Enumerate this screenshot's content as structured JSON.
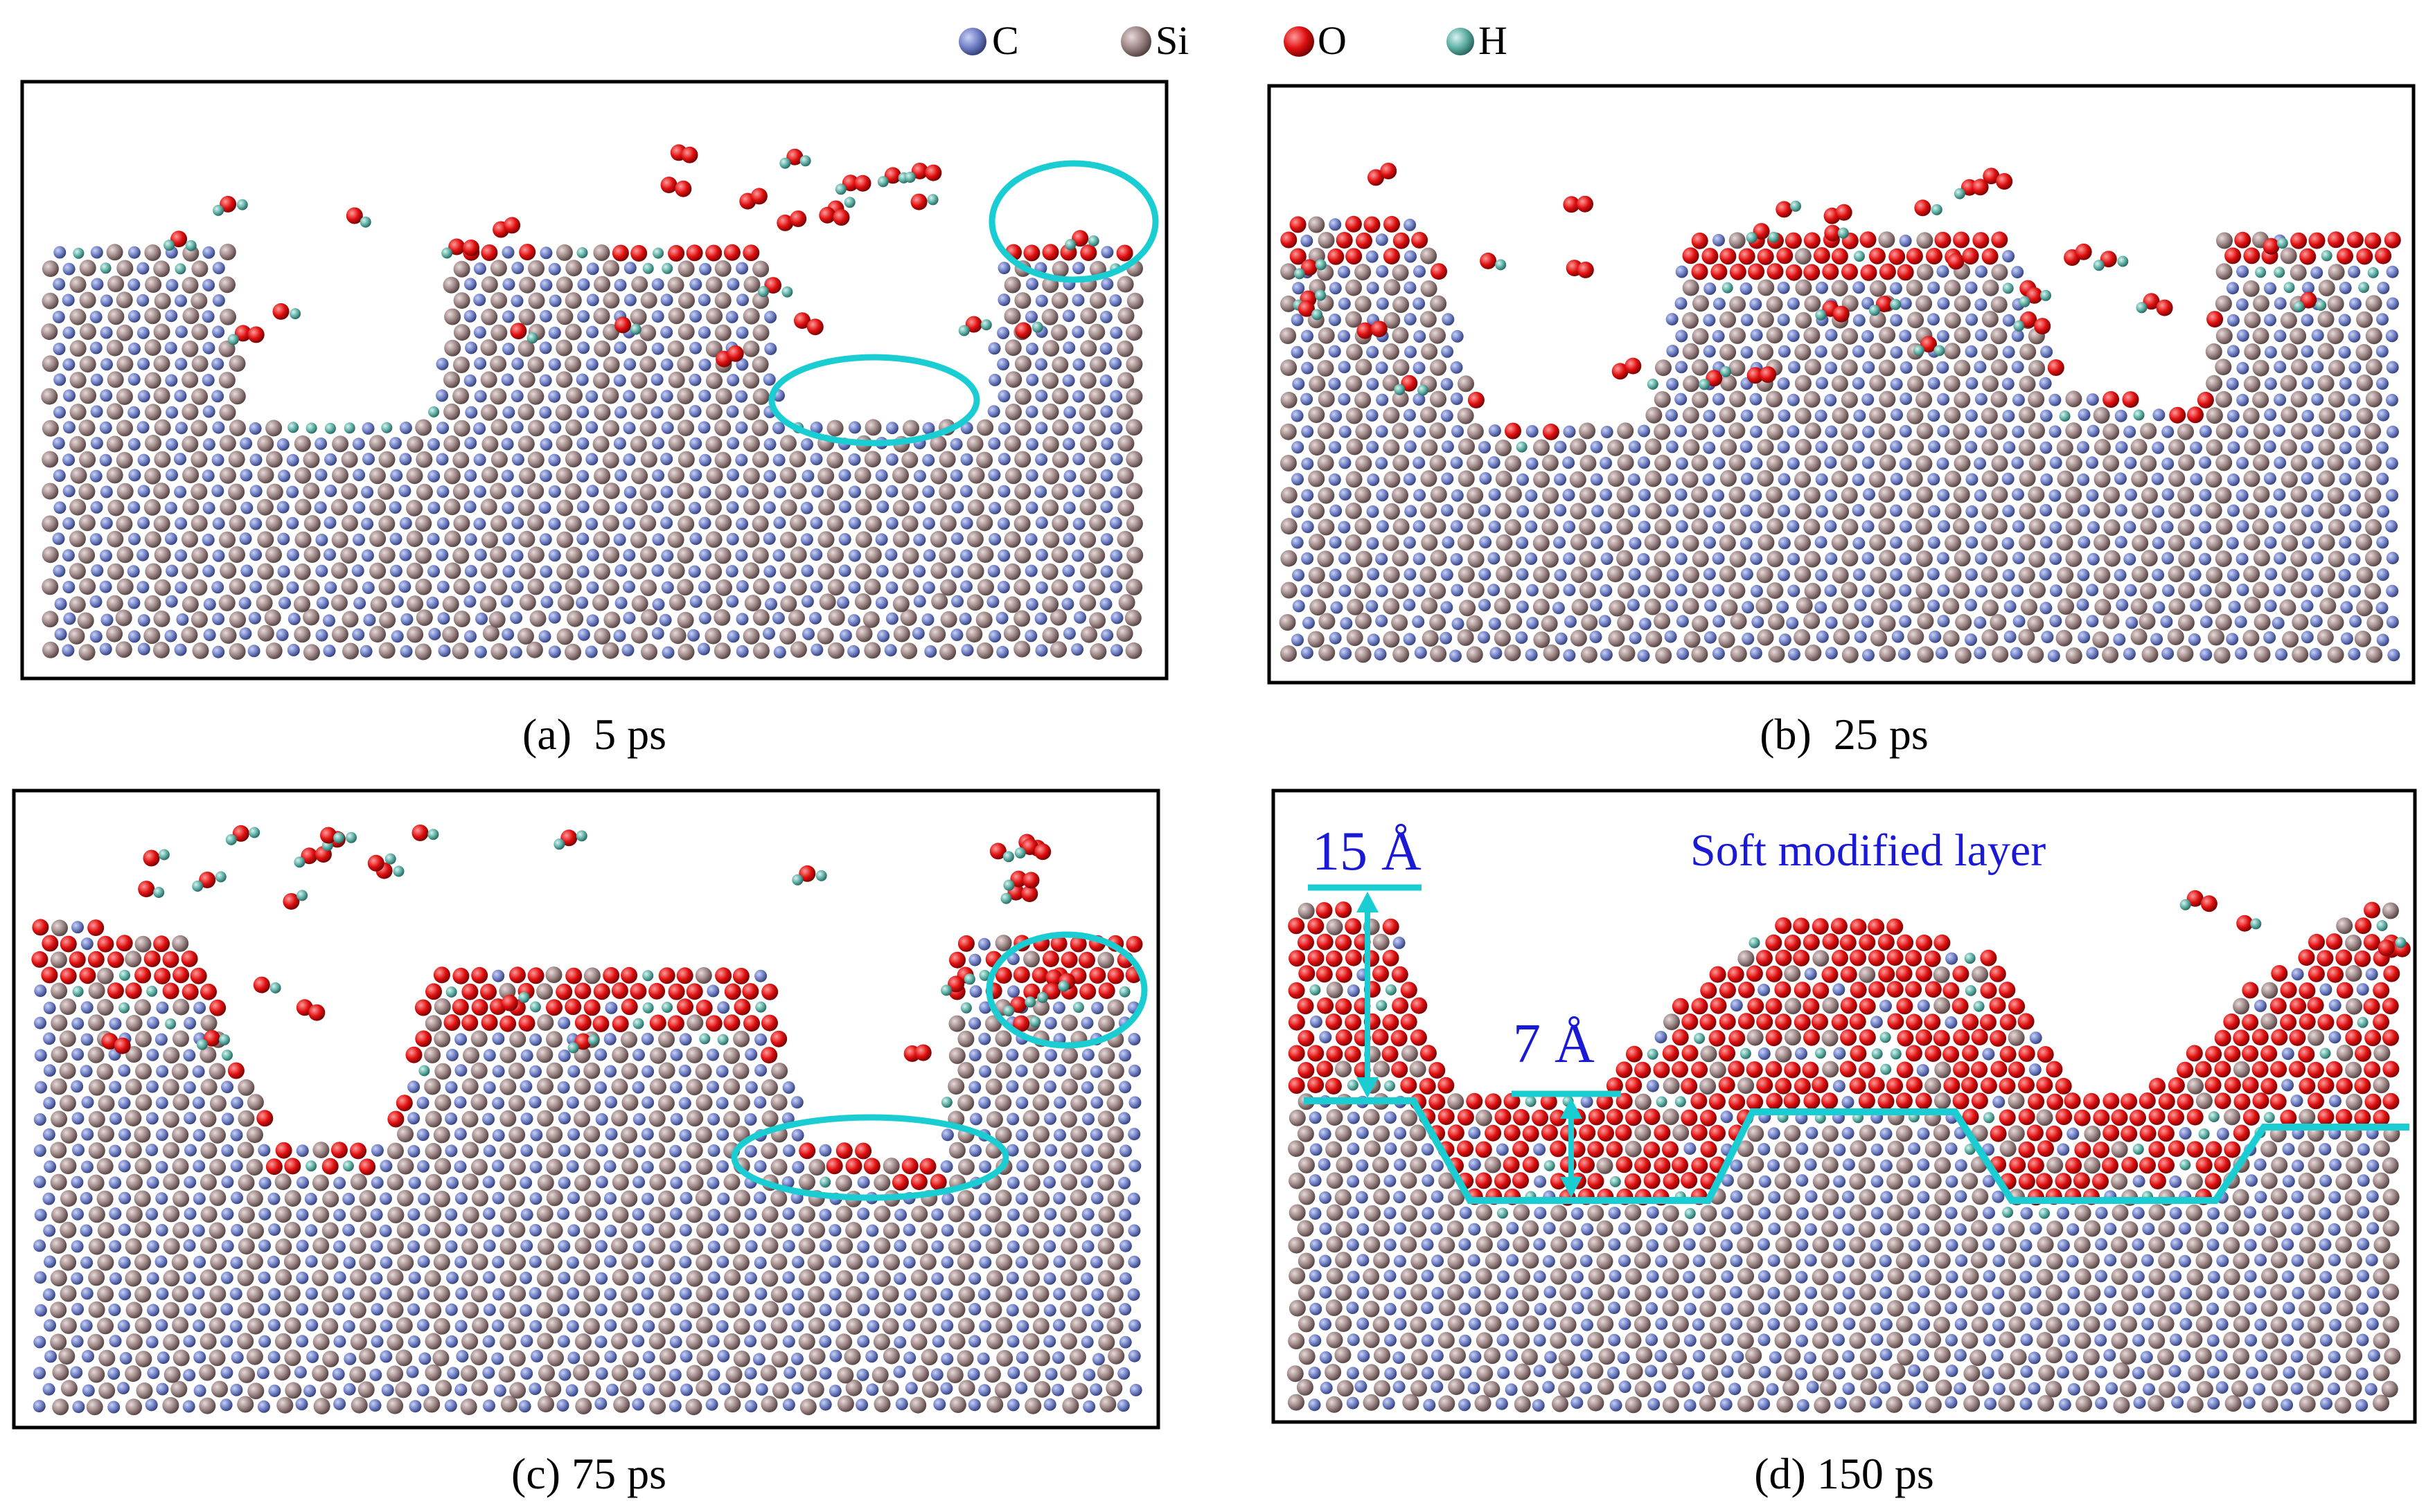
{
  "legend": [
    {
      "symbol": "C",
      "color": "#6f7fc4"
    },
    {
      "symbol": "Si",
      "color": "#9c8585"
    },
    {
      "symbol": "O",
      "color": "#e01010"
    },
    {
      "symbol": "H",
      "color": "#5fb0a6"
    }
  ],
  "panels": [
    {
      "id": "a",
      "caption": "(a)  5 ps"
    },
    {
      "id": "b",
      "caption": "(b)  25 ps"
    },
    {
      "id": "c",
      "caption": "(c) 75 ps"
    },
    {
      "id": "d",
      "caption": "(d) 150 ps"
    }
  ],
  "annotations": {
    "height_big": "15 Å",
    "height_small": "7 Å",
    "layer_label": "Soft modified layer"
  },
  "colors": {
    "carbon": "#6f7fc4",
    "silicon": "#9c8585",
    "oxygen": "#e01010",
    "hydrogen": "#5fb0a6",
    "highlight": "#19cdd2",
    "annotation_text": "#1a1ad6"
  }
}
